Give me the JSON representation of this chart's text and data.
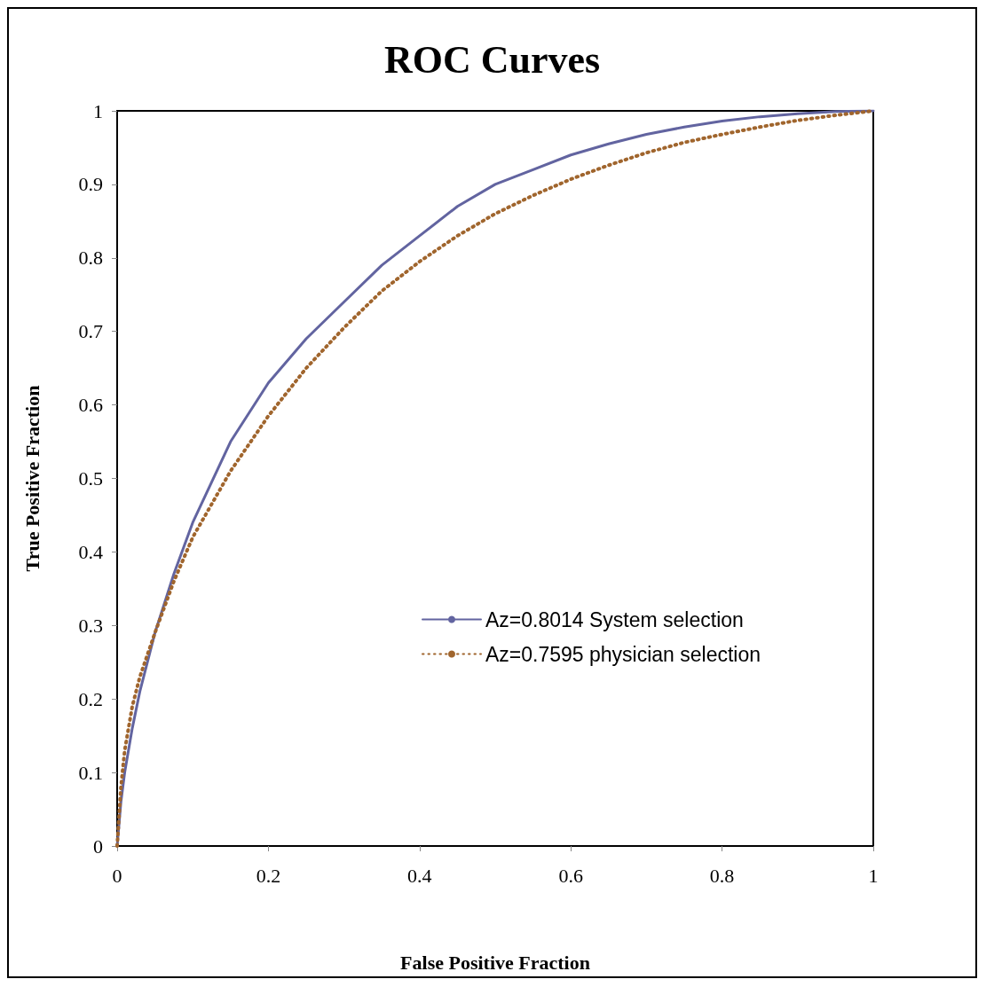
{
  "chart_data": {
    "type": "line",
    "title": "ROC Curves",
    "xlabel": "False Positive Fraction",
    "ylabel": "True Positive Fraction",
    "xlim": [
      0,
      1
    ],
    "ylim": [
      0,
      1
    ],
    "xticks": [
      0,
      0.2,
      0.4,
      0.6,
      0.8,
      1
    ],
    "yticks": [
      0,
      0.1,
      0.2,
      0.3,
      0.4,
      0.5,
      0.6,
      0.7,
      0.8,
      0.9,
      1
    ],
    "grid": false,
    "legend": "right",
    "marker": "none",
    "series": [
      {
        "name": "Az=0.8014 System selection",
        "color": "#6264a0",
        "line_style": "solid",
        "x": [
          0,
          0.005,
          0.01,
          0.02,
          0.03,
          0.05,
          0.075,
          0.1,
          0.15,
          0.2,
          0.25,
          0.3,
          0.35,
          0.4,
          0.45,
          0.5,
          0.55,
          0.6,
          0.65,
          0.7,
          0.75,
          0.8,
          0.85,
          0.9,
          0.95,
          1
        ],
        "values": [
          0,
          0.06,
          0.1,
          0.16,
          0.21,
          0.29,
          0.37,
          0.44,
          0.55,
          0.63,
          0.69,
          0.74,
          0.79,
          0.83,
          0.87,
          0.9,
          0.92,
          0.94,
          0.955,
          0.968,
          0.978,
          0.986,
          0.992,
          0.996,
          0.999,
          1
        ]
      },
      {
        "name": "Az=0.7595 physician selection",
        "color": "#a0652d",
        "line_style": "dotted",
        "x": [
          0,
          0.005,
          0.01,
          0.02,
          0.03,
          0.05,
          0.075,
          0.1,
          0.15,
          0.2,
          0.25,
          0.3,
          0.35,
          0.4,
          0.45,
          0.5,
          0.55,
          0.6,
          0.65,
          0.7,
          0.75,
          0.8,
          0.85,
          0.9,
          0.95,
          1
        ],
        "values": [
          0,
          0.08,
          0.13,
          0.19,
          0.23,
          0.29,
          0.36,
          0.42,
          0.51,
          0.585,
          0.65,
          0.705,
          0.755,
          0.795,
          0.83,
          0.86,
          0.885,
          0.907,
          0.926,
          0.943,
          0.957,
          0.968,
          0.978,
          0.987,
          0.994,
          1
        ]
      }
    ]
  }
}
